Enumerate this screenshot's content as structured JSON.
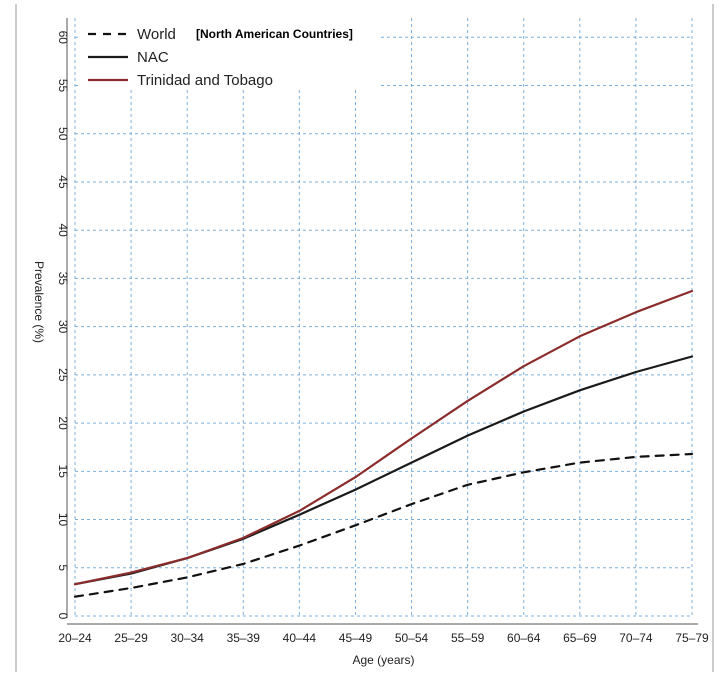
{
  "chart_data": {
    "type": "line",
    "title": "",
    "note": "[North American Countries]",
    "xlabel": "Age (years)",
    "ylabel": "Prevalence (%)",
    "categories": [
      "20–24",
      "25–29",
      "30–34",
      "35–39",
      "40–44",
      "45–49",
      "50–54",
      "55–59",
      "60–64",
      "65–69",
      "70–74",
      "75–79"
    ],
    "ylim": [
      0,
      62
    ],
    "yticks": [
      0,
      5,
      10,
      15,
      20,
      25,
      30,
      35,
      40,
      45,
      50,
      55,
      60
    ],
    "grid": true,
    "legend_position": "top-left",
    "series": [
      {
        "name": "World",
        "style": "dashed",
        "color": "#111111",
        "values": [
          2.0,
          2.9,
          4.0,
          5.4,
          7.3,
          9.4,
          11.6,
          13.6,
          14.9,
          15.9,
          16.5,
          16.8
        ]
      },
      {
        "name": "NAC",
        "style": "solid",
        "color": "#1a1a1a",
        "values": [
          3.3,
          4.4,
          6.0,
          8.0,
          10.5,
          13.1,
          15.9,
          18.7,
          21.2,
          23.4,
          25.3,
          26.9
        ]
      },
      {
        "name": "Trinidad and Tobago",
        "style": "solid",
        "color": "#8b2c2c",
        "values": [
          3.3,
          4.5,
          6.0,
          8.1,
          10.9,
          14.4,
          18.4,
          22.3,
          25.9,
          29.0,
          31.5,
          33.7
        ]
      }
    ]
  }
}
